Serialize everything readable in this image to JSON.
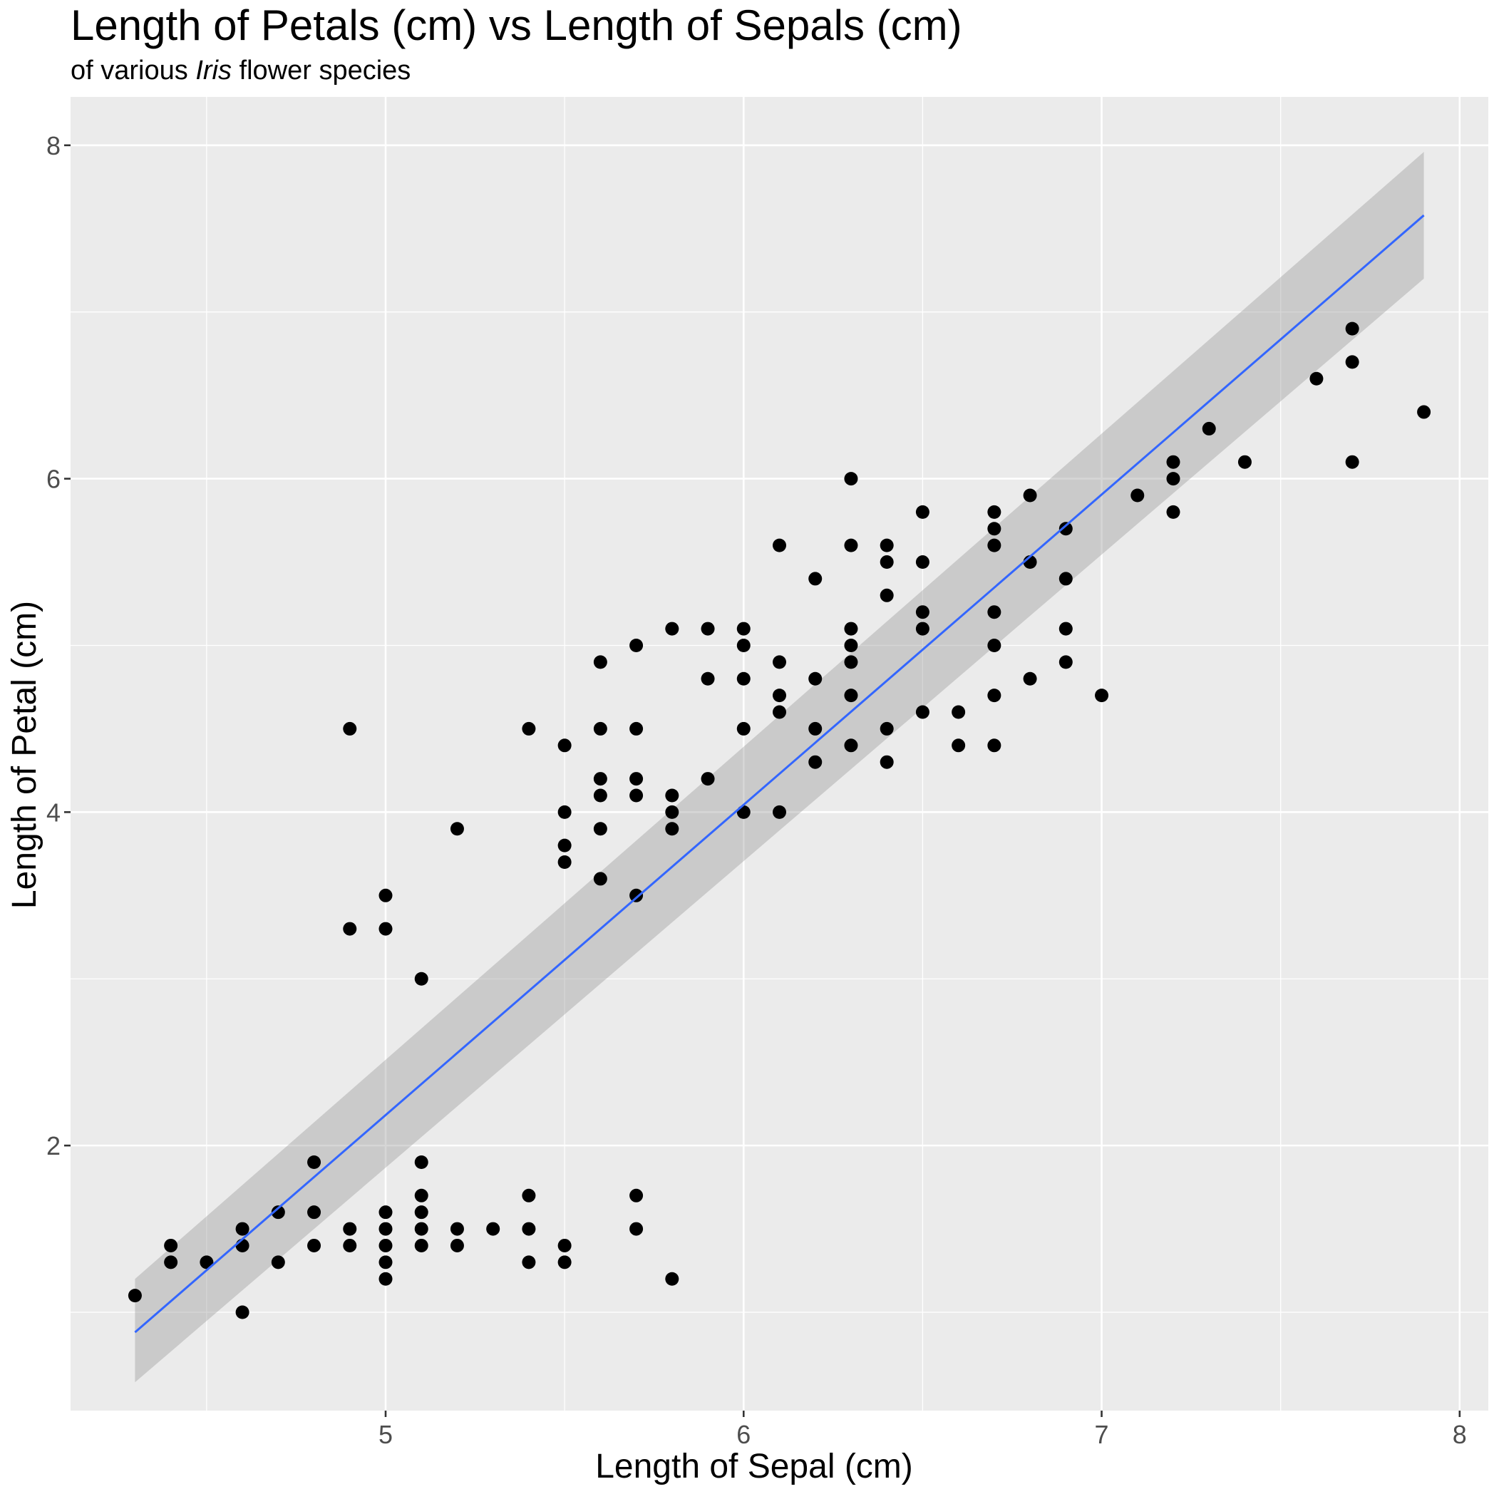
{
  "chart_data": {
    "type": "scatter",
    "title": "Length of Petals (cm) vs Length of Sepals (cm)",
    "subtitle": {
      "before": "of various ",
      "italic": "Iris",
      "after": " flower species"
    },
    "xlabel": "Length of Sepal (cm)",
    "ylabel": "Length of Petal (cm)",
    "xlim": [
      4.12,
      8.08
    ],
    "ylim": [
      0.41,
      8.29
    ],
    "x_ticks": [
      5,
      6,
      7,
      8
    ],
    "x_tick_labels": [
      "5",
      "6",
      "7",
      "8"
    ],
    "y_ticks": [
      2,
      4,
      6,
      8
    ],
    "y_tick_labels": [
      "2",
      "4",
      "6",
      "8"
    ],
    "grid": true,
    "panel_background": "#ebebeb",
    "point_color": "#000000",
    "line_color": "#3366ff",
    "ribbon_color": "#999999",
    "trend_line": {
      "method": "linear",
      "x": [
        4.3,
        7.9
      ],
      "y": [
        0.88,
        7.58
      ],
      "ribbon_lower": [
        0.58,
        7.2
      ],
      "ribbon_upper": [
        1.2,
        7.96
      ]
    },
    "points": [
      [
        4.3,
        1.1
      ],
      [
        4.4,
        1.3
      ],
      [
        4.4,
        1.4
      ],
      [
        4.5,
        1.3
      ],
      [
        4.6,
        1.0
      ],
      [
        4.6,
        1.4
      ],
      [
        4.6,
        1.5
      ],
      [
        4.7,
        1.3
      ],
      [
        4.7,
        1.6
      ],
      [
        4.8,
        1.4
      ],
      [
        4.8,
        1.6
      ],
      [
        4.8,
        1.9
      ],
      [
        4.9,
        1.4
      ],
      [
        4.9,
        1.5
      ],
      [
        4.9,
        3.3
      ],
      [
        4.9,
        4.5
      ],
      [
        5.0,
        1.2
      ],
      [
        5.0,
        1.3
      ],
      [
        5.0,
        1.4
      ],
      [
        5.0,
        1.5
      ],
      [
        5.0,
        1.6
      ],
      [
        5.0,
        3.3
      ],
      [
        5.0,
        3.5
      ],
      [
        5.1,
        1.4
      ],
      [
        5.1,
        1.5
      ],
      [
        5.1,
        1.6
      ],
      [
        5.1,
        1.7
      ],
      [
        5.1,
        1.9
      ],
      [
        5.1,
        3.0
      ],
      [
        5.2,
        1.4
      ],
      [
        5.2,
        1.5
      ],
      [
        5.2,
        3.9
      ],
      [
        5.3,
        1.5
      ],
      [
        5.4,
        1.3
      ],
      [
        5.4,
        1.5
      ],
      [
        5.4,
        1.7
      ],
      [
        5.4,
        4.5
      ],
      [
        5.5,
        1.3
      ],
      [
        5.5,
        1.4
      ],
      [
        5.5,
        3.7
      ],
      [
        5.5,
        3.8
      ],
      [
        5.5,
        4.0
      ],
      [
        5.5,
        4.4
      ],
      [
        5.6,
        3.6
      ],
      [
        5.6,
        3.9
      ],
      [
        5.6,
        4.1
      ],
      [
        5.6,
        4.2
      ],
      [
        5.6,
        4.5
      ],
      [
        5.6,
        4.9
      ],
      [
        5.7,
        1.5
      ],
      [
        5.7,
        1.7
      ],
      [
        5.7,
        3.5
      ],
      [
        5.7,
        4.1
      ],
      [
        5.7,
        4.2
      ],
      [
        5.7,
        4.5
      ],
      [
        5.7,
        5.0
      ],
      [
        5.8,
        1.2
      ],
      [
        5.8,
        3.9
      ],
      [
        5.8,
        4.0
      ],
      [
        5.8,
        4.1
      ],
      [
        5.8,
        5.1
      ],
      [
        5.9,
        4.2
      ],
      [
        5.9,
        4.8
      ],
      [
        5.9,
        5.1
      ],
      [
        6.0,
        4.0
      ],
      [
        6.0,
        4.5
      ],
      [
        6.0,
        4.8
      ],
      [
        6.0,
        5.0
      ],
      [
        6.0,
        5.1
      ],
      [
        6.1,
        4.0
      ],
      [
        6.1,
        4.6
      ],
      [
        6.1,
        4.7
      ],
      [
        6.1,
        4.9
      ],
      [
        6.1,
        5.6
      ],
      [
        6.2,
        4.3
      ],
      [
        6.2,
        4.5
      ],
      [
        6.2,
        4.8
      ],
      [
        6.2,
        5.4
      ],
      [
        6.3,
        4.4
      ],
      [
        6.3,
        4.7
      ],
      [
        6.3,
        4.9
      ],
      [
        6.3,
        5.0
      ],
      [
        6.3,
        5.1
      ],
      [
        6.3,
        5.6
      ],
      [
        6.3,
        6.0
      ],
      [
        6.4,
        4.3
      ],
      [
        6.4,
        4.5
      ],
      [
        6.4,
        5.3
      ],
      [
        6.4,
        5.5
      ],
      [
        6.4,
        5.6
      ],
      [
        6.5,
        4.6
      ],
      [
        6.5,
        5.1
      ],
      [
        6.5,
        5.2
      ],
      [
        6.5,
        5.5
      ],
      [
        6.5,
        5.8
      ],
      [
        6.6,
        4.4
      ],
      [
        6.6,
        4.6
      ],
      [
        6.7,
        4.4
      ],
      [
        6.7,
        4.7
      ],
      [
        6.7,
        5.0
      ],
      [
        6.7,
        5.2
      ],
      [
        6.7,
        5.6
      ],
      [
        6.7,
        5.7
      ],
      [
        6.7,
        5.8
      ],
      [
        6.8,
        4.8
      ],
      [
        6.8,
        5.5
      ],
      [
        6.8,
        5.9
      ],
      [
        6.9,
        4.9
      ],
      [
        6.9,
        5.1
      ],
      [
        6.9,
        5.4
      ],
      [
        6.9,
        5.7
      ],
      [
        7.0,
        4.7
      ],
      [
        7.1,
        5.9
      ],
      [
        7.2,
        5.8
      ],
      [
        7.2,
        6.0
      ],
      [
        7.2,
        6.1
      ],
      [
        7.3,
        6.3
      ],
      [
        7.4,
        6.1
      ],
      [
        7.6,
        6.6
      ],
      [
        7.7,
        6.1
      ],
      [
        7.7,
        6.7
      ],
      [
        7.7,
        6.9
      ],
      [
        7.9,
        6.4
      ]
    ]
  }
}
